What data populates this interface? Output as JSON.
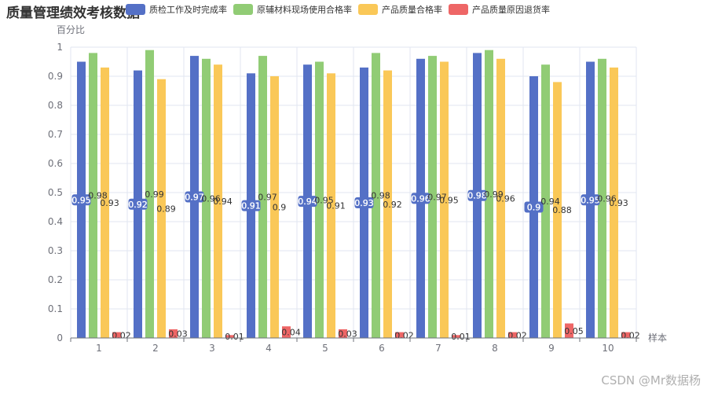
{
  "chart_data": {
    "type": "bar",
    "title": "质量管理绩效考核数据",
    "xlabel": "样本",
    "ylabel": "百分比",
    "ylim": [
      0,
      1
    ],
    "yticks": [
      0,
      0.1,
      0.2,
      0.3,
      0.4,
      0.5,
      0.6,
      0.7,
      0.8,
      0.9,
      1
    ],
    "categories": [
      "1",
      "2",
      "3",
      "4",
      "5",
      "6",
      "7",
      "8",
      "9",
      "10"
    ],
    "series": [
      {
        "name": "质检工作及时完成率",
        "color": "#5470c6",
        "values": [
          0.95,
          0.92,
          0.97,
          0.91,
          0.94,
          0.93,
          0.96,
          0.98,
          0.9,
          0.95
        ]
      },
      {
        "name": "原辅材料现场使用合格率",
        "color": "#91cc75",
        "values": [
          0.98,
          0.99,
          0.96,
          0.97,
          0.95,
          0.98,
          0.97,
          0.99,
          0.94,
          0.96
        ]
      },
      {
        "name": "产品质量合格率",
        "color": "#fac858",
        "values": [
          0.93,
          0.89,
          0.94,
          0.9,
          0.91,
          0.92,
          0.95,
          0.96,
          0.88,
          0.93
        ]
      },
      {
        "name": "产品质量原因退货率",
        "color": "#ee6666",
        "values": [
          0.02,
          0.03,
          0.01,
          0.04,
          0.03,
          0.02,
          0.01,
          0.02,
          0.05,
          0.02
        ]
      }
    ]
  },
  "watermark": "CSDN @Mr数据杨"
}
